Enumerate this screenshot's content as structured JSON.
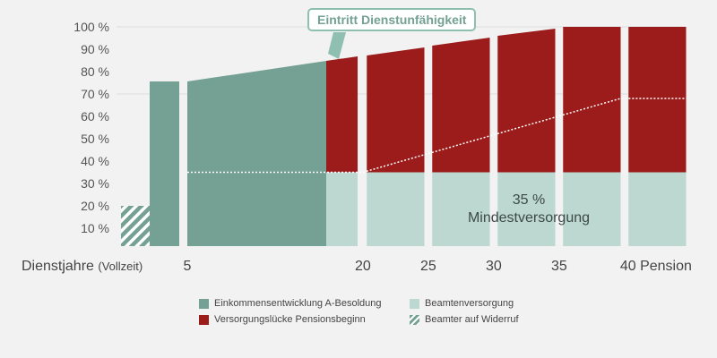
{
  "chart_data": {
    "type": "bar",
    "ylim": [
      0,
      100
    ],
    "yticks": [
      "10 %",
      "20 %",
      "30 %",
      "40 %",
      "50 %",
      "60 %",
      "70 %",
      "80 %",
      "90 %",
      "100 %"
    ],
    "ytick_values": [
      10,
      20,
      30,
      40,
      50,
      60,
      70,
      80,
      90,
      100
    ],
    "xlabel": "Dienstjahre",
    "xlabel_note": "(Vollzeit)",
    "xticks": [
      {
        "value": 5,
        "label": "5"
      },
      {
        "value": 20,
        "label": "20"
      },
      {
        "value": 25,
        "label": "25"
      },
      {
        "value": 30,
        "label": "30"
      },
      {
        "value": 35,
        "label": "35"
      },
      {
        "value": 40,
        "label": "40 Pension"
      }
    ],
    "grid": true,
    "colors": {
      "einkommen": "#74a194",
      "luecke": "#9b1c1b",
      "versorgung": "#bcd8d0",
      "widerruf": "#74a194",
      "background": "#f2f2f2"
    },
    "segments": [
      {
        "series": "widerruf",
        "x0": 0,
        "x1": 2.2,
        "y0": 20,
        "y1": 20,
        "base": 0
      },
      {
        "series": "einkommen",
        "x0": 2.2,
        "x1": 4.5,
        "y0": 75.6,
        "y1": 75.6,
        "base": 0
      },
      {
        "series": "einkommen",
        "x0": 5,
        "x1": 17.2,
        "y0": 75.6,
        "y1": 84.8,
        "base": 0
      },
      {
        "series": "versorgung",
        "x0": 17.2,
        "x1": 19.6,
        "y0": 35,
        "y1": 35,
        "base": 0
      },
      {
        "series": "luecke",
        "x0": 17.2,
        "x1": 19.6,
        "y0": 84.8,
        "y1": 86.8,
        "base": 35
      },
      {
        "series": "versorgung",
        "x0": 20.3,
        "x1": 24.7,
        "y0": 35,
        "y1": 35,
        "base": 0
      },
      {
        "series": "luecke",
        "x0": 20.3,
        "x1": 24.7,
        "y0": 87.2,
        "y1": 90.8,
        "base": 35
      },
      {
        "series": "versorgung",
        "x0": 25.3,
        "x1": 29.7,
        "y0": 35,
        "y1": 35,
        "base": 0
      },
      {
        "series": "luecke",
        "x0": 25.3,
        "x1": 29.7,
        "y0": 91.6,
        "y1": 95.2,
        "base": 35
      },
      {
        "series": "versorgung",
        "x0": 30.3,
        "x1": 34.7,
        "y0": 35,
        "y1": 35,
        "base": 0
      },
      {
        "series": "luecke",
        "x0": 30.3,
        "x1": 34.7,
        "y0": 96,
        "y1": 99.2,
        "base": 35
      },
      {
        "series": "versorgung",
        "x0": 35.3,
        "x1": 39.7,
        "y0": 35,
        "y1": 35,
        "base": 0
      },
      {
        "series": "luecke",
        "x0": 35.3,
        "x1": 39.7,
        "y0": 100,
        "y1": 100,
        "base": 35
      },
      {
        "series": "versorgung",
        "x0": 40.3,
        "x1": 44.7,
        "y0": 35,
        "y1": 35,
        "base": 0
      },
      {
        "series": "luecke",
        "x0": 40.3,
        "x1": 44.7,
        "y0": 100,
        "y1": 100,
        "base": 35
      }
    ],
    "pension_line": [
      [
        5,
        35
      ],
      [
        20,
        35
      ],
      [
        39.7,
        68
      ],
      [
        44.7,
        68
      ]
    ],
    "annotation_event": "Eintritt Dienstunfähigkeit",
    "annotation_min_pct": "35 %",
    "annotation_min_label": "Mindestversorgung",
    "legend": [
      {
        "key": "einkommen",
        "label": "Einkommensentwicklung A-Besoldung"
      },
      {
        "key": "versorgung",
        "label": "Beamtenversorgung"
      },
      {
        "key": "luecke",
        "label": "Versorgungslücke Pensionsbeginn"
      },
      {
        "key": "widerruf",
        "label": "Beamter auf Widerruf"
      }
    ]
  }
}
